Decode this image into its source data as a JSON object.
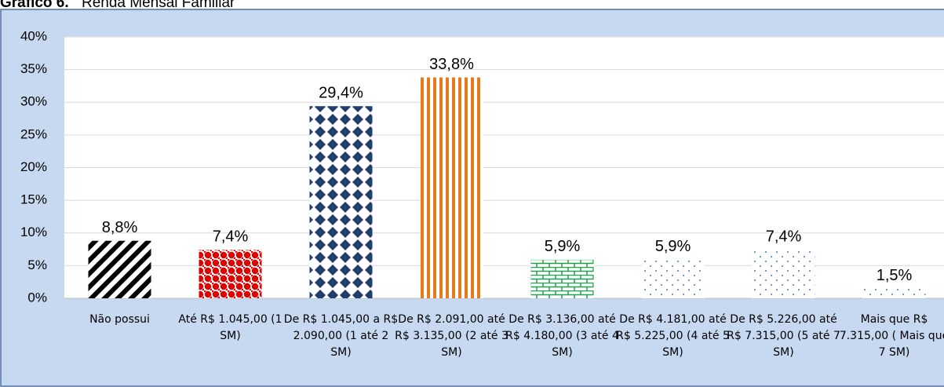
{
  "chart_data": {
    "type": "bar",
    "title_label": "Gráfico 6.",
    "title": "Renda Mensal Familiar",
    "categories": [
      "Não possui",
      "Até R$ 1.045,00 (1 SM)",
      "De R$ 1.045,00 a R$ 2.090,00 (1 até 2 SM)",
      "De R$ 2.091,00 até R$ 3.135,00 (2 até 3 SM)",
      "De R$ 3.136,00 até R$ 4.180,00 (3 até 4 SM)",
      "De R$ 4.181,00 até R$ 5.225,00 (4 até 5 SM)",
      "De R$ 5.226,00 até R$ 7.315,00 (5 até 7 SM)",
      "Mais que R$ 7.315,00 ( Mais que 7 SM)"
    ],
    "values": [
      8.8,
      7.4,
      29.4,
      33.8,
      5.9,
      5.9,
      7.4,
      1.5
    ],
    "value_labels": [
      "8,8%",
      "7,4%",
      "29,4%",
      "33,8%",
      "5,9%",
      "5,9%",
      "7,4%",
      "1,5%"
    ],
    "colors": [
      "#000000",
      "#e00000",
      "#1f3d6e",
      "#e87a1a",
      "#1fa34a",
      "#4a7ac0",
      "#4a7ac0",
      "#4a7ac0"
    ],
    "ylim": [
      0,
      40
    ],
    "yticks": [
      {
        "value": 0,
        "label": "0%"
      },
      {
        "value": 5,
        "label": "5%"
      },
      {
        "value": 10,
        "label": "10%"
      },
      {
        "value": 15,
        "label": "15%"
      },
      {
        "value": 20,
        "label": "20%"
      },
      {
        "value": 25,
        "label": "25%"
      },
      {
        "value": 30,
        "label": "30%"
      },
      {
        "value": 35,
        "label": "35%"
      },
      {
        "value": 40,
        "label": "40%"
      }
    ],
    "grid": true
  }
}
